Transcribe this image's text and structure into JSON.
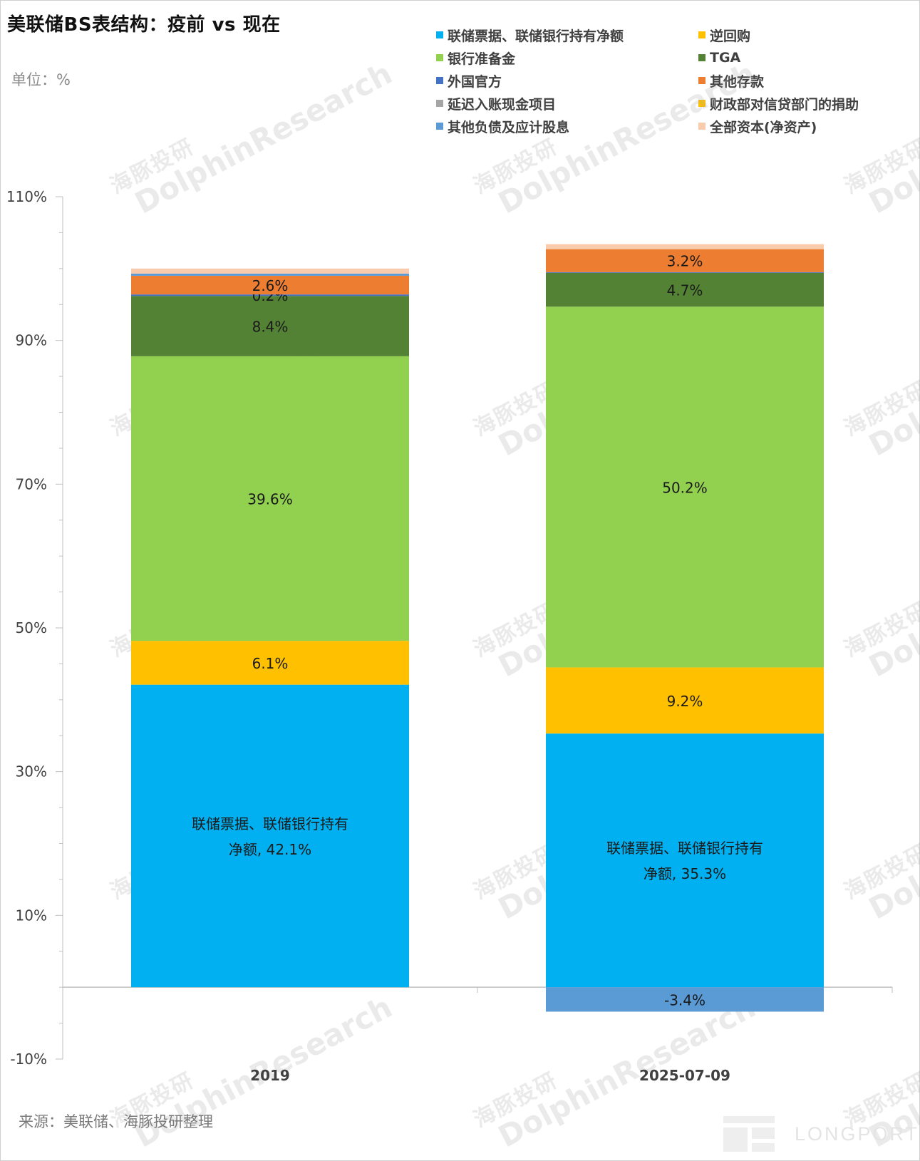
{
  "title": "美联储BS表结构：疫前 vs 现在",
  "unit_label": "单位：%",
  "source_label": "来源：美联储、海豚投研整理",
  "watermark": {
    "cn": "海豚投研",
    "en": "DolphinResearch"
  },
  "logo_text": "LONGPORT",
  "legend": [
    {
      "label": "联储票据、联储银行持有净额",
      "color": "#00B0F0"
    },
    {
      "label": "逆回购",
      "color": "#FFC000"
    },
    {
      "label": "银行准备金",
      "color": "#92D050"
    },
    {
      "label": "TGA",
      "color": "#548235"
    },
    {
      "label": "外国官方",
      "color": "#4472C4"
    },
    {
      "label": "其他存款",
      "color": "#ED7D31"
    },
    {
      "label": "延迟入账现金项目",
      "color": "#A5A5A5"
    },
    {
      "label": "财政部对信贷部门的捐助",
      "color": "#FFC000"
    },
    {
      "label": "其他负债及应计股息",
      "color": "#5B9BD5"
    },
    {
      "label": "全部资本(净资产)",
      "color": "#F8CBAD"
    }
  ],
  "chart_data": {
    "type": "bar",
    "stacked": true,
    "title": "美联储BS表结构：疫前 vs 现在",
    "ylabel": "单位：%",
    "ylim": [
      -10,
      110
    ],
    "yticks": [
      -10,
      10,
      30,
      50,
      70,
      90,
      110
    ],
    "ytick_labels": [
      "-10%",
      "10%",
      "30%",
      "50%",
      "70%",
      "90%",
      "110%"
    ],
    "categories": [
      "2019",
      "2025-07-09"
    ],
    "series": [
      {
        "name": "联储票据、联储银行持有净额",
        "color": "#00B0F0",
        "values": [
          42.1,
          35.3
        ],
        "labels": [
          "联储票据、联储银行持有\n净额, 42.1%",
          "联储票据、联储银行持有\n净额, 35.3%"
        ]
      },
      {
        "name": "逆回购",
        "color": "#FFC000",
        "values": [
          6.1,
          9.2
        ],
        "labels": [
          "6.1%",
          "9.2%"
        ]
      },
      {
        "name": "银行准备金",
        "color": "#92D050",
        "values": [
          39.6,
          50.2
        ],
        "labels": [
          "39.6%",
          "50.2%"
        ]
      },
      {
        "name": "TGA",
        "color": "#548235",
        "values": [
          8.4,
          4.7
        ],
        "labels": [
          "8.4%",
          "4.7%"
        ]
      },
      {
        "name": "外国官方",
        "color": "#4472C4",
        "values": [
          0.2,
          0.1
        ],
        "labels": [
          "0.2%",
          ""
        ]
      },
      {
        "name": "其他存款",
        "color": "#ED7D31",
        "values": [
          2.6,
          3.2
        ],
        "labels": [
          "2.6%",
          "3.2%"
        ]
      },
      {
        "name": "延迟入账现金项目",
        "color": "#A5A5A5",
        "values": [
          0.0,
          0.0
        ],
        "labels": [
          "",
          ""
        ]
      },
      {
        "name": "财政部对信贷部门的捐助",
        "color": "#FFC000",
        "values": [
          0.0,
          0.0
        ],
        "labels": [
          "",
          ""
        ]
      },
      {
        "name": "其他负债及应计股息",
        "color": "#5B9BD5",
        "values": [
          0.3,
          -3.4
        ],
        "labels": [
          "",
          "-3.4%"
        ]
      },
      {
        "name": "全部资本(净资产)",
        "color": "#F8CBAD",
        "values": [
          0.7,
          0.7
        ],
        "labels": [
          "",
          ""
        ]
      }
    ]
  }
}
